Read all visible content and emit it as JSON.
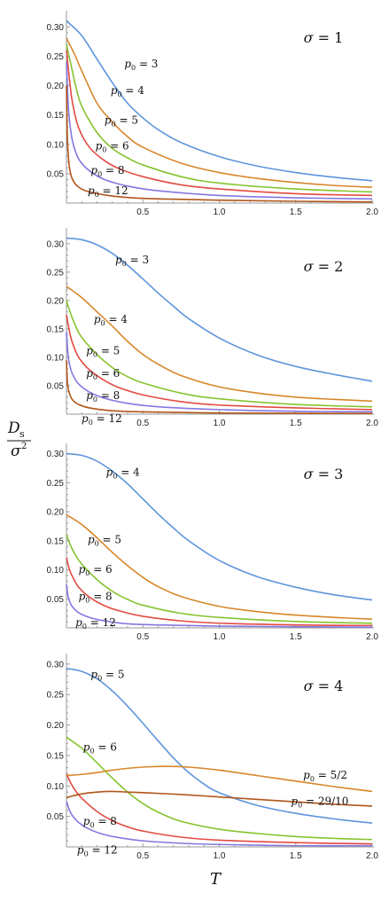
{
  "figure": {
    "y_label_numerator": "D",
    "y_label_sub": "s",
    "y_label_denominator": "σ",
    "y_label_sup": "2",
    "x_label": "T"
  },
  "colors": {
    "p3": "#5e95dc",
    "p4": "#d8872a",
    "p5": "#86c32e",
    "p6": "#e24a43",
    "p8": "#8378e0",
    "p12": "#b1551a",
    "p52": "#d8872a",
    "p2910": "#b1551a"
  },
  "chart_data": [
    {
      "type": "line",
      "annotation": "σ = 1",
      "xlim": [
        0,
        2.0
      ],
      "ylim": [
        0,
        0.32
      ],
      "x_ticks": [
        0.5,
        1.0,
        1.5,
        2.0
      ],
      "y_ticks": [
        0.05,
        0.1,
        0.15,
        0.2,
        0.25,
        0.3
      ],
      "series": [
        {
          "name": "p₀ = 3",
          "color_key": "p3",
          "x": [
            0,
            0.1,
            0.2,
            0.3,
            0.4,
            0.5,
            0.6,
            0.75,
            1.0,
            1.25,
            1.5,
            1.75,
            2.0
          ],
          "y": [
            0.31,
            0.285,
            0.245,
            0.205,
            0.17,
            0.145,
            0.125,
            0.103,
            0.079,
            0.063,
            0.052,
            0.044,
            0.038
          ]
        },
        {
          "name": "p₀ = 4",
          "color_key": "p4",
          "x": [
            0,
            0.05,
            0.1,
            0.2,
            0.3,
            0.4,
            0.5,
            0.75,
            1.0,
            1.25,
            1.5,
            1.75,
            2.0
          ],
          "y": [
            0.28,
            0.255,
            0.225,
            0.17,
            0.138,
            0.113,
            0.095,
            0.068,
            0.052,
            0.042,
            0.035,
            0.03,
            0.027
          ]
        },
        {
          "name": "p₀ = 5",
          "color_key": "p5",
          "x": [
            0,
            0.03,
            0.06,
            0.1,
            0.2,
            0.3,
            0.4,
            0.5,
            0.75,
            1.0,
            1.5,
            2.0
          ],
          "y": [
            0.27,
            0.235,
            0.2,
            0.165,
            0.12,
            0.093,
            0.077,
            0.065,
            0.045,
            0.034,
            0.024,
            0.019
          ]
        },
        {
          "name": "p₀ = 6",
          "color_key": "p6",
          "x": [
            0,
            0.02,
            0.04,
            0.08,
            0.15,
            0.25,
            0.35,
            0.5,
            0.75,
            1.0,
            1.5,
            2.0
          ],
          "y": [
            0.26,
            0.21,
            0.17,
            0.128,
            0.095,
            0.072,
            0.058,
            0.045,
            0.031,
            0.024,
            0.016,
            0.013
          ]
        },
        {
          "name": "p₀ = 8",
          "color_key": "p8",
          "x": [
            0,
            0.01,
            0.02,
            0.04,
            0.08,
            0.15,
            0.25,
            0.4,
            0.6,
            1.0,
            1.5,
            2.0
          ],
          "y": [
            0.24,
            0.175,
            0.14,
            0.105,
            0.075,
            0.055,
            0.04,
            0.029,
            0.021,
            0.013,
            0.009,
            0.007
          ]
        },
        {
          "name": "p₀ = 12",
          "color_key": "p12",
          "x": [
            0,
            0.005,
            0.01,
            0.02,
            0.04,
            0.08,
            0.15,
            0.3,
            0.5,
            1.0,
            1.5,
            2.0
          ],
          "y": [
            0.2,
            0.12,
            0.09,
            0.06,
            0.04,
            0.027,
            0.019,
            0.012,
            0.008,
            0.005,
            0.003,
            0.002
          ]
        }
      ],
      "curve_labels": [
        {
          "text": "p₀ = 3",
          "x": 0.46,
          "y": 0.237
        },
        {
          "text": "p₀ = 4",
          "x": 0.37,
          "y": 0.192
        },
        {
          "text": "p₀ = 5",
          "x": 0.33,
          "y": 0.141
        },
        {
          "text": "p₀ = 6",
          "x": 0.27,
          "y": 0.097
        },
        {
          "text": "p₀ = 8",
          "x": 0.24,
          "y": 0.056
        },
        {
          "text": "p₀ = 12",
          "x": 0.22,
          "y": 0.021
        }
      ]
    },
    {
      "type": "line",
      "annotation": "σ = 2",
      "xlim": [
        0,
        2.0
      ],
      "ylim": [
        0,
        0.32
      ],
      "x_ticks": [
        0.5,
        1.0,
        1.5,
        2.0
      ],
      "y_ticks": [
        0.05,
        0.1,
        0.15,
        0.2,
        0.25,
        0.3
      ],
      "series": [
        {
          "name": "p₀ = 3",
          "color_key": "p3",
          "x": [
            0,
            0.1,
            0.2,
            0.3,
            0.4,
            0.5,
            0.6,
            0.7,
            0.8,
            1.0,
            1.25,
            1.5,
            1.75,
            2.0
          ],
          "y": [
            0.31,
            0.307,
            0.298,
            0.283,
            0.262,
            0.238,
            0.213,
            0.19,
            0.168,
            0.134,
            0.104,
            0.084,
            0.07,
            0.058
          ]
        },
        {
          "name": "p₀ = 4",
          "color_key": "p4",
          "x": [
            0,
            0.1,
            0.2,
            0.3,
            0.4,
            0.5,
            0.6,
            0.75,
            1.0,
            1.25,
            1.5,
            1.75,
            2.0
          ],
          "y": [
            0.225,
            0.205,
            0.18,
            0.155,
            0.128,
            0.105,
            0.088,
            0.068,
            0.048,
            0.037,
            0.03,
            0.026,
            0.023
          ]
        },
        {
          "name": "p₀ = 5",
          "color_key": "p5",
          "x": [
            0,
            0.03,
            0.06,
            0.1,
            0.2,
            0.3,
            0.4,
            0.5,
            0.75,
            1.0,
            1.5,
            2.0
          ],
          "y": [
            0.2,
            0.175,
            0.155,
            0.135,
            0.105,
            0.082,
            0.066,
            0.055,
            0.037,
            0.027,
            0.017,
            0.013
          ]
        },
        {
          "name": "p₀ = 6",
          "color_key": "p6",
          "x": [
            0,
            0.02,
            0.04,
            0.08,
            0.15,
            0.25,
            0.35,
            0.5,
            0.75,
            1.0,
            1.5,
            2.0
          ],
          "y": [
            0.175,
            0.145,
            0.125,
            0.1,
            0.078,
            0.059,
            0.046,
            0.034,
            0.022,
            0.016,
            0.011,
            0.008
          ]
        },
        {
          "name": "p₀ = 8",
          "color_key": "p8",
          "x": [
            0,
            0.01,
            0.02,
            0.04,
            0.08,
            0.15,
            0.25,
            0.4,
            0.6,
            1.0,
            1.5,
            2.0
          ],
          "y": [
            0.145,
            0.105,
            0.088,
            0.07,
            0.053,
            0.039,
            0.028,
            0.019,
            0.013,
            0.008,
            0.005,
            0.004
          ]
        },
        {
          "name": "p₀ = 12",
          "color_key": "p12",
          "x": [
            0,
            0.005,
            0.01,
            0.02,
            0.04,
            0.08,
            0.15,
            0.3,
            0.5,
            1.0,
            1.5,
            2.0
          ],
          "y": [
            0.095,
            0.06,
            0.048,
            0.036,
            0.025,
            0.017,
            0.011,
            0.006,
            0.004,
            0.002,
            0.0015,
            0.001
          ]
        }
      ],
      "curve_labels": [
        {
          "text": "p₀ = 3",
          "x": 0.4,
          "y": 0.272
        },
        {
          "text": "p₀ = 4",
          "x": 0.26,
          "y": 0.167
        },
        {
          "text": "p₀ = 5",
          "x": 0.21,
          "y": 0.112
        },
        {
          "text": "p₀ = 6",
          "x": 0.21,
          "y": 0.072
        },
        {
          "text": "p₀ = 8",
          "x": 0.21,
          "y": 0.033
        },
        {
          "text": "p₀ = 12",
          "x": 0.18,
          "y": -0.008
        }
      ]
    },
    {
      "type": "line",
      "annotation": "σ = 3",
      "xlim": [
        0,
        2.0
      ],
      "ylim": [
        0,
        0.31
      ],
      "x_ticks": [
        0.5,
        1.0,
        1.5,
        2.0
      ],
      "y_ticks": [
        0.05,
        0.1,
        0.15,
        0.2,
        0.25,
        0.3
      ],
      "series": [
        {
          "name": "p₀ = 4",
          "color_key": "p3",
          "x": [
            0,
            0.1,
            0.2,
            0.3,
            0.4,
            0.5,
            0.6,
            0.7,
            0.8,
            1.0,
            1.25,
            1.5,
            1.75,
            2.0
          ],
          "y": [
            0.3,
            0.297,
            0.287,
            0.27,
            0.248,
            0.222,
            0.196,
            0.172,
            0.15,
            0.116,
            0.088,
            0.07,
            0.057,
            0.048
          ]
        },
        {
          "name": "p₀ = 5",
          "color_key": "p4",
          "x": [
            0,
            0.1,
            0.2,
            0.3,
            0.4,
            0.5,
            0.6,
            0.75,
            1.0,
            1.25,
            1.5,
            1.75,
            2.0
          ],
          "y": [
            0.195,
            0.178,
            0.155,
            0.13,
            0.107,
            0.087,
            0.071,
            0.054,
            0.037,
            0.028,
            0.022,
            0.018,
            0.015
          ]
        },
        {
          "name": "p₀ = 6",
          "color_key": "p5",
          "x": [
            0,
            0.03,
            0.06,
            0.1,
            0.2,
            0.3,
            0.4,
            0.5,
            0.75,
            1.0,
            1.5,
            2.0
          ],
          "y": [
            0.16,
            0.14,
            0.125,
            0.11,
            0.083,
            0.063,
            0.049,
            0.039,
            0.025,
            0.018,
            0.011,
            0.008
          ]
        },
        {
          "name": "p₀ = 8",
          "color_key": "p6",
          "x": [
            0,
            0.02,
            0.04,
            0.08,
            0.15,
            0.25,
            0.35,
            0.5,
            0.75,
            1.0,
            1.5,
            2.0
          ],
          "y": [
            0.12,
            0.1,
            0.088,
            0.07,
            0.053,
            0.038,
            0.029,
            0.02,
            0.012,
            0.008,
            0.005,
            0.004
          ]
        },
        {
          "name": "p₀ = 12",
          "color_key": "p8",
          "x": [
            0,
            0.01,
            0.02,
            0.04,
            0.08,
            0.15,
            0.25,
            0.4,
            0.6,
            1.0,
            1.5,
            2.0
          ],
          "y": [
            0.075,
            0.055,
            0.046,
            0.036,
            0.026,
            0.018,
            0.012,
            0.007,
            0.005,
            0.003,
            0.002,
            0.001
          ]
        }
      ],
      "curve_labels": [
        {
          "text": "p₀ = 4",
          "x": 0.34,
          "y": 0.268
        },
        {
          "text": "p₀ = 5",
          "x": 0.22,
          "y": 0.152
        },
        {
          "text": "p₀ = 6",
          "x": 0.16,
          "y": 0.101
        },
        {
          "text": "p₀ = 8",
          "x": 0.16,
          "y": 0.054
        },
        {
          "text": "p₀ = 12",
          "x": 0.14,
          "y": 0.009
        }
      ]
    },
    {
      "type": "line",
      "annotation": "σ = 4",
      "xlim": [
        0,
        2.0
      ],
      "ylim": [
        0,
        0.31
      ],
      "x_ticks": [
        0.5,
        1.0,
        1.5,
        2.0
      ],
      "y_ticks": [
        0.05,
        0.1,
        0.15,
        0.2,
        0.25,
        0.3
      ],
      "series": [
        {
          "name": "p₀ = 5",
          "color_key": "p3",
          "x": [
            0,
            0.1,
            0.2,
            0.3,
            0.4,
            0.5,
            0.6,
            0.7,
            0.8,
            0.9,
            1.0,
            1.25,
            1.5,
            1.75,
            2.0
          ],
          "y": [
            0.293,
            0.288,
            0.276,
            0.256,
            0.231,
            0.203,
            0.174,
            0.146,
            0.122,
            0.103,
            0.089,
            0.068,
            0.055,
            0.046,
            0.039
          ]
        },
        {
          "name": "p₀ = 6",
          "color_key": "p5",
          "x": [
            0,
            0.1,
            0.2,
            0.3,
            0.4,
            0.5,
            0.6,
            0.75,
            1.0,
            1.25,
            1.5,
            1.75,
            2.0
          ],
          "y": [
            0.18,
            0.162,
            0.138,
            0.113,
            0.09,
            0.071,
            0.057,
            0.042,
            0.029,
            0.022,
            0.017,
            0.014,
            0.012
          ]
        },
        {
          "name": "p₀ = 8",
          "color_key": "p6",
          "x": [
            0,
            0.03,
            0.06,
            0.1,
            0.2,
            0.3,
            0.4,
            0.5,
            0.75,
            1.0,
            1.5,
            2.0
          ],
          "y": [
            0.12,
            0.104,
            0.092,
            0.08,
            0.058,
            0.043,
            0.033,
            0.026,
            0.016,
            0.011,
            0.007,
            0.005
          ]
        },
        {
          "name": "p₀ = 12",
          "color_key": "p8",
          "x": [
            0,
            0.02,
            0.04,
            0.08,
            0.15,
            0.25,
            0.35,
            0.5,
            0.75,
            1.0,
            1.5,
            2.0
          ],
          "y": [
            0.075,
            0.06,
            0.051,
            0.04,
            0.029,
            0.02,
            0.015,
            0.01,
            0.006,
            0.004,
            0.002,
            0.002
          ]
        },
        {
          "name": "p₀ = 5/2",
          "color_key": "p52",
          "x": [
            0,
            0.1,
            0.2,
            0.3,
            0.4,
            0.5,
            0.6,
            0.7,
            0.8,
            1.0,
            1.25,
            1.5,
            1.75,
            2.0
          ],
          "y": [
            0.117,
            0.119,
            0.122,
            0.126,
            0.129,
            0.131,
            0.132,
            0.132,
            0.131,
            0.126,
            0.117,
            0.108,
            0.099,
            0.091
          ]
        },
        {
          "name": "p₀ = 29/10",
          "color_key": "p2910",
          "x": [
            0,
            0.1,
            0.2,
            0.3,
            0.4,
            0.5,
            0.75,
            1.0,
            1.25,
            1.5,
            1.75,
            2.0
          ],
          "y": [
            0.081,
            0.087,
            0.09,
            0.091,
            0.09,
            0.089,
            0.086,
            0.082,
            0.078,
            0.074,
            0.07,
            0.067
          ]
        }
      ],
      "curve_labels": [
        {
          "text": "p₀ = 5",
          "x": 0.24,
          "y": 0.283
        },
        {
          "text": "p₀ = 6",
          "x": 0.19,
          "y": 0.164
        },
        {
          "text": "p₀ = 8",
          "x": 0.19,
          "y": 0.042
        },
        {
          "text": "p₀ = 12",
          "x": 0.15,
          "y": -0.005
        },
        {
          "text": "p₀ = 5/2",
          "x": 1.63,
          "y": 0.118
        },
        {
          "text": "p₀ = 29/10",
          "x": 1.55,
          "y": 0.075
        }
      ]
    }
  ]
}
